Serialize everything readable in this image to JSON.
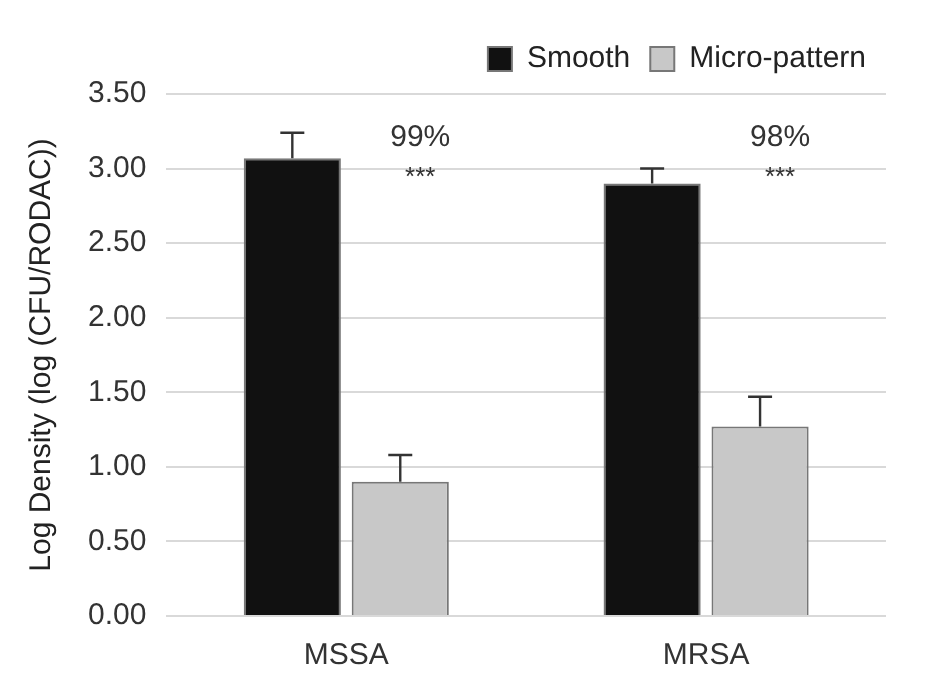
{
  "chart_data": {
    "type": "bar",
    "ylabel": "Log Density (log (CFU/RODAC))",
    "categories": [
      "MSSA",
      "MRSA"
    ],
    "series": [
      {
        "name": "Smooth",
        "color": "#111111",
        "values": [
          3.07,
          2.9
        ],
        "errors": [
          [
            3.07,
            3.24
          ],
          [
            2.9,
            3.0
          ]
        ]
      },
      {
        "name": "Micro-pattern",
        "color": "#c8c8c8",
        "values": [
          0.9,
          1.27
        ],
        "errors": [
          [
            0.9,
            1.08
          ],
          [
            1.27,
            1.47
          ]
        ]
      }
    ],
    "annotations": [
      "99%",
      "***",
      "98%",
      "***"
    ],
    "ylim": [
      0,
      3.5
    ],
    "yticks": [
      {
        "value": 0,
        "label": "0.00"
      },
      {
        "value": 0.5,
        "label": "0.50"
      },
      {
        "value": 1,
        "label": "1.00"
      },
      {
        "value": 1.5,
        "label": "1.50"
      },
      {
        "value": 2,
        "label": "2.00"
      },
      {
        "value": 2.5,
        "label": "2.50"
      },
      {
        "value": 3,
        "label": "3.00"
      },
      {
        "value": 3.5,
        "label": "3.50"
      }
    ],
    "grid": "y",
    "legend": "top right"
  }
}
